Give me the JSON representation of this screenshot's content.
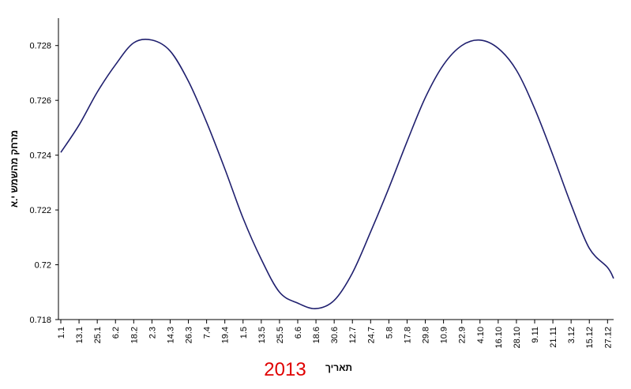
{
  "chart_data": {
    "type": "line",
    "title": "",
    "ylabel": "מרחק מהשמש י.א",
    "xlabel": "תאריך",
    "year_label": "2013",
    "ylim": [
      0.718,
      0.729
    ],
    "y_ticks": [
      "0.718",
      "0.72",
      "0.722",
      "0.724",
      "0.726",
      "0.728"
    ],
    "x_ticks": [
      "1.1",
      "13.1",
      "25.1",
      "6.2",
      "18.2",
      "2.3",
      "14.3",
      "26.3",
      "7.4",
      "19.4",
      "1.5",
      "13.5",
      "25.5",
      "6.6",
      "18.6",
      "30.6",
      "12.7",
      "24.7",
      "5.8",
      "17.8",
      "29.8",
      "10.9",
      "22.9",
      "4.10",
      "16.10",
      "28.10",
      "9.11",
      "21.11",
      "3.12",
      "15.12",
      "27.12"
    ],
    "grid": false,
    "legend": "none",
    "series": [
      {
        "x": [
          "1.1",
          "13.1",
          "25.1",
          "6.2",
          "18.2",
          "2.3",
          "14.3",
          "26.3",
          "7.4",
          "19.4",
          "1.5",
          "13.5",
          "25.5",
          "6.6",
          "18.6",
          "30.6",
          "12.7",
          "24.7",
          "5.8",
          "17.8",
          "29.8",
          "10.9",
          "22.9",
          "4.10",
          "16.10",
          "28.10",
          "9.11",
          "21.11",
          "3.12",
          "15.12",
          "27.12",
          "31.12"
        ],
        "values": [
          0.7241,
          0.7251,
          0.7263,
          0.7273,
          0.7281,
          0.7282,
          0.7278,
          0.7267,
          0.7252,
          0.7235,
          0.7217,
          0.7202,
          0.719,
          0.7186,
          0.7184,
          0.7187,
          0.7197,
          0.7212,
          0.7228,
          0.7245,
          0.7261,
          0.7273,
          0.728,
          0.7282,
          0.7279,
          0.7271,
          0.7257,
          0.724,
          0.7222,
          0.7206,
          0.7199,
          0.7195
        ]
      }
    ],
    "colors": {
      "line": "#1f1f6e",
      "year_label": "#e00000"
    }
  }
}
